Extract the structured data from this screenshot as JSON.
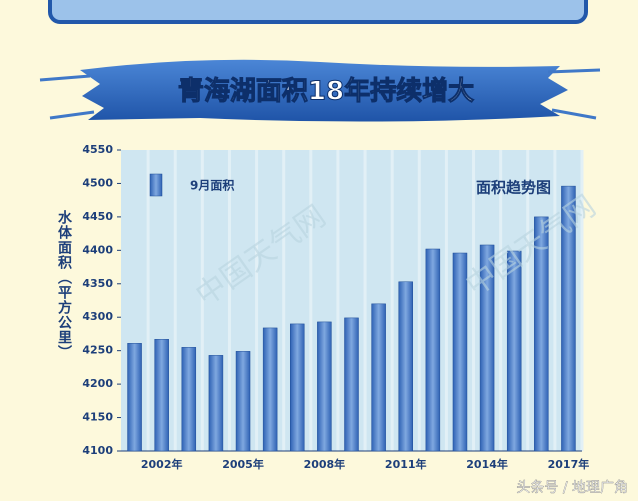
{
  "chart_data": {
    "type": "bar",
    "title": "青海湖面积18年持续增大",
    "ylabel": "水体面积（平方公里）",
    "annotation": "面积趋势图",
    "watermark": "中国天气网",
    "credit": "头条号 / 地理广角",
    "categories": [
      null,
      "2002年",
      null,
      null,
      "2005年",
      null,
      null,
      "2008年",
      null,
      null,
      "2011年",
      null,
      null,
      "2014年",
      null,
      null,
      "2017年"
    ],
    "series": [
      {
        "name": "9月面积",
        "color": "#2f62b4",
        "values": [
          4261,
          4267,
          4255,
          4243,
          4249,
          4284,
          4290,
          4293,
          4299,
          4320,
          4353,
          4402,
          4396,
          4408,
          4399,
          4450,
          4496
        ]
      }
    ],
    "ylim": [
      4100,
      4550
    ],
    "yticks": [
      4100,
      4150,
      4200,
      4250,
      4300,
      4350,
      4400,
      4450,
      4500,
      4550
    ]
  }
}
